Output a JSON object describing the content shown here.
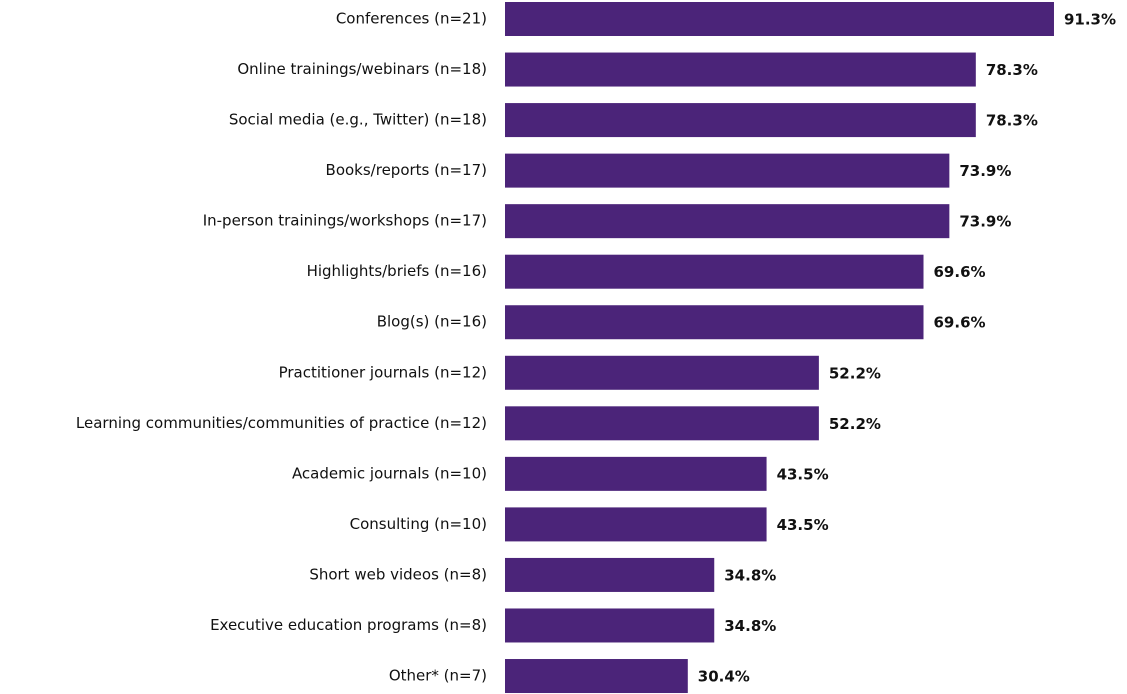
{
  "chart_data": {
    "type": "bar",
    "orientation": "horizontal",
    "categories": [
      "Conferences (n=21)",
      "Online trainings/webinars (n=18)",
      "Social media (e.g., Twitter) (n=18)",
      "Books/reports (n=17)",
      "In-person trainings/workshops (n=17)",
      "Highlights/briefs (n=16)",
      "Blog(s) (n=16)",
      "Practitioner journals (n=12)",
      "Learning communities/communities of practice (n=12)",
      "Academic journals (n=10)",
      "Consulting (n=10)",
      "Short web videos (n=8)",
      "Executive education programs (n=8)",
      "Other* (n=7)"
    ],
    "values": [
      91.3,
      78.3,
      78.3,
      73.9,
      73.9,
      69.6,
      69.6,
      52.2,
      52.2,
      43.5,
      43.5,
      34.8,
      34.8,
      30.4
    ],
    "value_labels": [
      "91.3%",
      "78.3%",
      "78.3%",
      "73.9%",
      "73.9%",
      "69.6%",
      "69.6%",
      "52.2%",
      "52.2%",
      "43.5%",
      "43.5%",
      "34.8%",
      "34.8%",
      "30.4%"
    ],
    "color": "#4b2479"
  }
}
